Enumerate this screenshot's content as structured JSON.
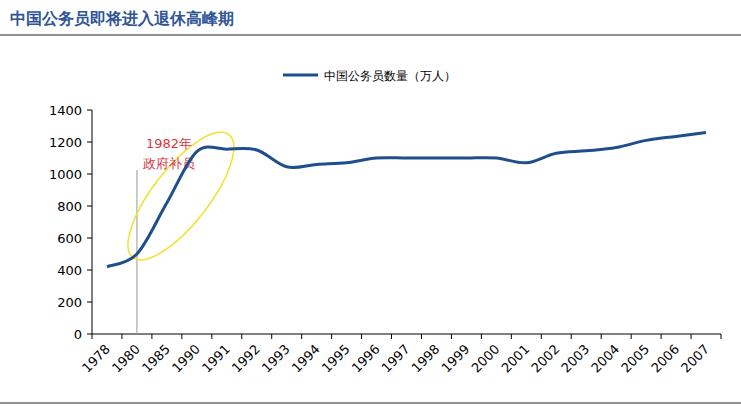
{
  "chart_data": {
    "type": "line",
    "title": "中国公务员即将进入退休高峰期",
    "categories": [
      "1978",
      "1980",
      "1985",
      "1990",
      "1991",
      "1992",
      "1993",
      "1994",
      "1995",
      "1996",
      "1997",
      "1998",
      "1999",
      "2000",
      "2001",
      "2002",
      "2003",
      "2004",
      "2005",
      "2006",
      "2007"
    ],
    "series": [
      {
        "name": "中国公务员数量（万人）",
        "color": "#1f4e8c",
        "values": [
          420,
          500,
          820,
          1140,
          1155,
          1150,
          1045,
          1060,
          1070,
          1100,
          1100,
          1100,
          1100,
          1100,
          1070,
          1130,
          1145,
          1165,
          1210,
          1235,
          1260
        ]
      }
    ],
    "ylim": [
      0,
      1400
    ],
    "yticks": [
      0,
      200,
      400,
      600,
      800,
      1000,
      1200,
      1400
    ],
    "grid": false,
    "legend": "top",
    "annotations": [
      {
        "text": "1982年政府补员",
        "at": "1980",
        "color": "#d9363e"
      }
    ]
  }
}
